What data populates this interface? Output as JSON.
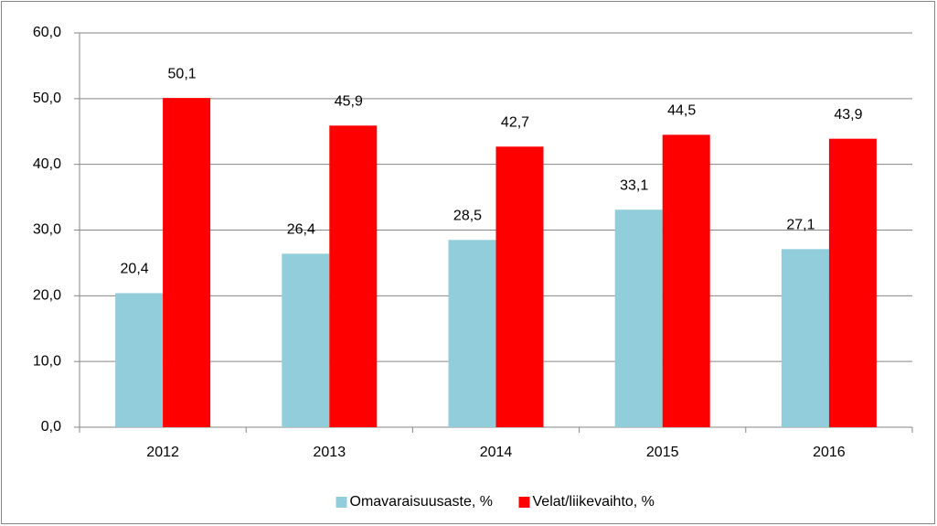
{
  "chart_data": {
    "type": "bar",
    "categories": [
      "2012",
      "2013",
      "2014",
      "2015",
      "2016"
    ],
    "series": [
      {
        "name": "Omavaraisuusaste, %",
        "color": "#92cddc",
        "values": [
          20.4,
          26.4,
          28.5,
          33.1,
          27.1
        ],
        "value_labels": [
          "20,4",
          "26,4",
          "28,5",
          "33,1",
          "27,1"
        ]
      },
      {
        "name": "Velat/liikevaihto, %",
        "color": "#ff0000",
        "values": [
          50.1,
          45.9,
          42.7,
          44.5,
          43.9
        ],
        "value_labels": [
          "50,1",
          "45,9",
          "42,7",
          "44,5",
          "43,9"
        ]
      }
    ],
    "ylim": [
      0,
      60
    ],
    "yticks": [
      {
        "value": 0,
        "label": "0,0"
      },
      {
        "value": 10,
        "label": "10,0"
      },
      {
        "value": 20,
        "label": "20,0"
      },
      {
        "value": 30,
        "label": "30,0"
      },
      {
        "value": 40,
        "label": "40,0"
      },
      {
        "value": 50,
        "label": "50,0"
      },
      {
        "value": 60,
        "label": "60,0"
      }
    ],
    "grid": true,
    "legend": "bottom"
  }
}
